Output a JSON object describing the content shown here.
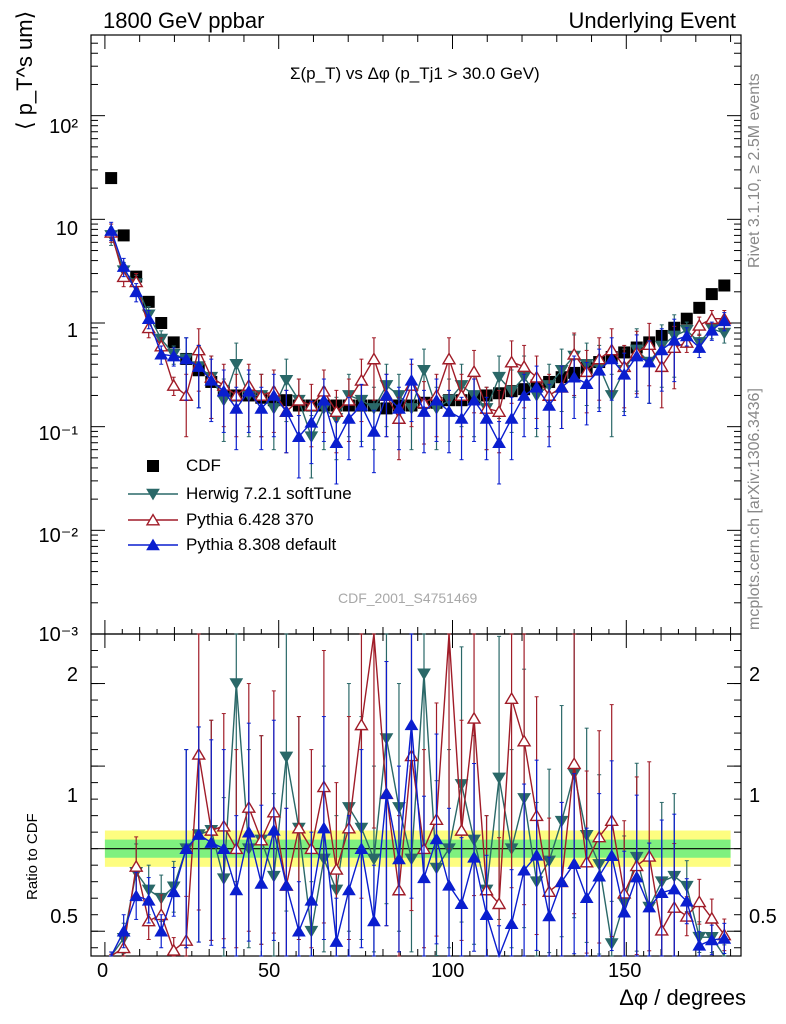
{
  "header": {
    "left": "1800 GeV ppbar",
    "right": "Underlying Event"
  },
  "side_text": {
    "upper": "Rivet 3.1.10, ≥ 2.5M events",
    "lower": "mcplots.cern.ch [arXiv:1306.3436]"
  },
  "watermark": "CDF_2001_S4751469",
  "chart_data": [
    {
      "type": "scatter",
      "panel": "main",
      "title": "Σ(p_T) vs Δφ (p_Tj1 > 30.0 GeV)",
      "ylabel": "⟨ p_T^s um⟩",
      "yscale": "log",
      "ylim": [
        0.001,
        600
      ],
      "xlim": [
        -4,
        183
      ],
      "y_tick_labels": [
        "10⁻³",
        "10⁻²",
        "10⁻¹",
        "1",
        "10",
        "10²"
      ],
      "legend_position": "lower-left",
      "series": [
        {
          "name": "CDF",
          "marker": "square",
          "color": "#000000",
          "x": [
            1.8,
            5.4,
            9,
            12.6,
            16.2,
            19.8,
            23.4,
            27,
            30.6,
            34.2,
            37.8,
            41.4,
            45,
            48.6,
            52.2,
            55.8,
            59.4,
            63,
            66.6,
            70.2,
            73.8,
            77.4,
            81,
            84.6,
            88.2,
            91.8,
            95.4,
            99,
            102.6,
            106.2,
            109.8,
            113.4,
            117,
            120.6,
            124.2,
            127.8,
            131.4,
            135,
            138.6,
            142.2,
            145.8,
            149.4,
            153,
            156.6,
            160.2,
            163.8,
            167.4,
            171,
            174.6,
            178.2
          ],
          "y": [
            25,
            7,
            2.8,
            1.6,
            1,
            0.65,
            0.45,
            0.35,
            0.27,
            0.22,
            0.2,
            0.2,
            0.19,
            0.18,
            0.18,
            0.16,
            0.16,
            0.16,
            0.16,
            0.16,
            0.16,
            0.16,
            0.15,
            0.16,
            0.16,
            0.17,
            0.17,
            0.18,
            0.18,
            0.19,
            0.2,
            0.21,
            0.22,
            0.23,
            0.25,
            0.27,
            0.3,
            0.33,
            0.37,
            0.42,
            0.47,
            0.52,
            0.58,
            0.65,
            0.75,
            0.9,
            1.1,
            1.4,
            1.9,
            2.3
          ]
        },
        {
          "name": "Herwig 7.2.1 softTune",
          "marker": "triangle-down",
          "color": "#2a6868",
          "x": [
            1.8,
            5.4,
            9,
            12.6,
            16.2,
            19.8,
            23.4,
            27,
            30.6,
            34.2,
            37.8,
            41.4,
            45,
            48.6,
            52.2,
            55.8,
            59.4,
            63,
            66.6,
            70.2,
            73.8,
            77.4,
            81,
            84.6,
            88.2,
            91.8,
            95.4,
            99,
            102.6,
            106.2,
            109.8,
            113.4,
            117,
            120.6,
            124.2,
            127.8,
            131.4,
            135,
            138.6,
            142.2,
            145.8,
            149.4,
            153,
            156.6,
            160.2,
            163.8,
            167.4,
            171,
            174.6,
            178.2
          ],
          "y": [
            7,
            3.2,
            2.4,
            1.2,
            0.7,
            0.5,
            0.45,
            0.38,
            0.3,
            0.18,
            0.4,
            0.2,
            0.2,
            0.15,
            0.28,
            0.18,
            0.08,
            0.15,
            0.12,
            0.2,
            0.18,
            0.15,
            0.25,
            0.2,
            0.15,
            0.35,
            0.15,
            0.18,
            0.25,
            0.2,
            0.15,
            0.3,
            0.22,
            0.3,
            0.2,
            0.25,
            0.35,
            0.48,
            0.4,
            0.38,
            0.2,
            0.35,
            0.55,
            0.42,
            0.6,
            0.75,
            0.85,
            0.65,
            0.88,
            0.8
          ]
        },
        {
          "name": "Pythia 6.428 370",
          "marker": "triangle-up-open",
          "color": "#a01c28",
          "x": [
            1.8,
            5.4,
            9,
            12.6,
            16.2,
            19.8,
            23.4,
            27,
            30.6,
            34.2,
            37.8,
            41.4,
            45,
            48.6,
            52.2,
            55.8,
            59.4,
            63,
            66.6,
            70.2,
            73.8,
            77.4,
            81,
            84.6,
            88.2,
            91.8,
            95.4,
            99,
            102.6,
            106.2,
            109.8,
            113.4,
            117,
            120.6,
            124.2,
            127.8,
            131.4,
            135,
            138.6,
            142.2,
            145.8,
            149.4,
            153,
            156.6,
            160.2,
            163.8,
            167.4,
            171,
            174.6,
            178.2
          ],
          "y": [
            7.5,
            2.8,
            2.5,
            0.9,
            0.6,
            0.25,
            0.2,
            0.55,
            0.3,
            0.25,
            0.2,
            0.25,
            0.2,
            0.22,
            0.14,
            0.18,
            0.16,
            0.22,
            0.14,
            0.18,
            0.28,
            0.45,
            0.2,
            0.12,
            0.25,
            0.17,
            0.2,
            0.45,
            0.2,
            0.34,
            0.15,
            0.14,
            0.42,
            0.38,
            0.3,
            0.2,
            0.24,
            0.5,
            0.34,
            0.45,
            0.55,
            0.38,
            0.52,
            0.62,
            0.38,
            0.58,
            0.65,
            0.95,
            1.1,
            1.1
          ]
        },
        {
          "name": "Pythia 8.308 default",
          "marker": "triangle-up",
          "color": "#0a1ecf",
          "x": [
            1.8,
            5.4,
            9,
            12.6,
            16.2,
            19.8,
            23.4,
            27,
            30.6,
            34.2,
            37.8,
            41.4,
            45,
            48.6,
            52.2,
            55.8,
            59.4,
            63,
            66.6,
            70.2,
            73.8,
            77.4,
            81,
            84.6,
            88.2,
            91.8,
            95.4,
            99,
            102.6,
            106.2,
            109.8,
            113.4,
            117,
            120.6,
            124.2,
            127.8,
            131.4,
            135,
            138.6,
            142.2,
            145.8,
            149.4,
            153,
            156.6,
            160.2,
            163.8,
            167.4,
            171,
            174.6,
            178.2
          ],
          "y": [
            7.8,
            3.5,
            2,
            1.1,
            0.5,
            0.48,
            0.45,
            0.38,
            0.28,
            0.22,
            0.15,
            0.22,
            0.15,
            0.2,
            0.14,
            0.08,
            0.11,
            0.18,
            0.07,
            0.12,
            0.16,
            0.09,
            0.2,
            0.15,
            0.28,
            0.14,
            0.18,
            0.14,
            0.12,
            0.18,
            0.12,
            0.07,
            0.12,
            0.2,
            0.24,
            0.16,
            0.24,
            0.3,
            0.26,
            0.35,
            0.45,
            0.32,
            0.48,
            0.42,
            0.55,
            0.68,
            0.75,
            0.58,
            0.85,
            1.05
          ]
        }
      ]
    },
    {
      "type": "scatter",
      "panel": "ratio",
      "xlabel": "Δφ / degrees",
      "ylabel": "Ratio to CDF",
      "ylim": [
        0.35,
        2.3
      ],
      "xlim": [
        -4,
        183
      ],
      "x_tick_labels": [
        "0",
        "50",
        "100",
        "150"
      ],
      "y_tick_labels": [
        "0.5",
        "1",
        "2"
      ],
      "band_colors": [
        "#7ff07f",
        "#fdfd80"
      ]
    }
  ],
  "colors": {
    "cdf": "#000000",
    "herwig": "#2a6868",
    "pythia6": "#a01c28",
    "pythia8": "#0a1ecf",
    "band_inner": "#7ff07f",
    "band_outer": "#fdfd80"
  }
}
